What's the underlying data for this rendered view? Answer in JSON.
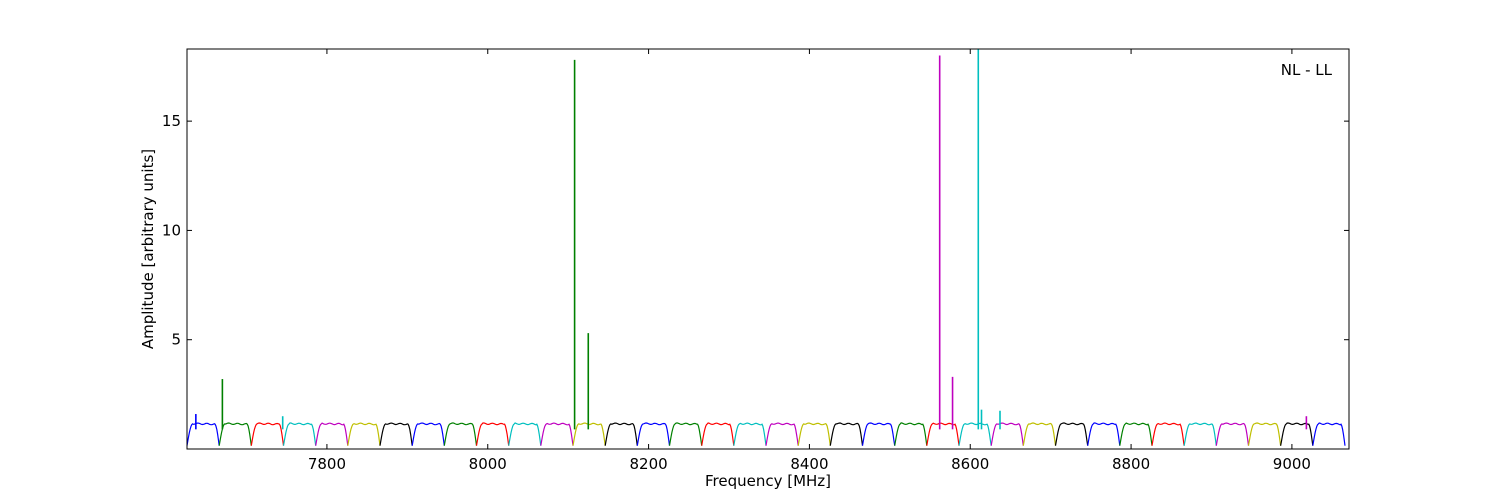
{
  "chart_data": {
    "type": "line",
    "title": "",
    "annotation": "NL - LL",
    "xlabel": "Frequency [MHz]",
    "ylabel": "Amplitude [arbitrary units]",
    "xlim": [
      7626,
      9071
    ],
    "ylim": [
      0,
      18.3
    ],
    "xticks": [
      7800,
      8000,
      8200,
      8400,
      8600,
      8800,
      9000
    ],
    "xtick_labels": [
      "7800",
      "8000",
      "8200",
      "8400",
      "8600",
      "8800",
      "9000"
    ],
    "yticks": [
      5,
      10,
      15
    ],
    "ytick_labels": [
      "5",
      "10",
      "15"
    ],
    "grid": false,
    "legend": "none",
    "band_start_mhz": 7626,
    "band_width_mhz": 40,
    "band_count": 36,
    "band_profile": {
      "shape": "bandpass",
      "edge_level": 0.15,
      "plateau_level": 1.15
    },
    "color_cycle": [
      "#0000ff",
      "#008000",
      "#ff0000",
      "#00bfbf",
      "#bf00bf",
      "#bfbf00",
      "#000000"
    ],
    "spikes": [
      {
        "x": 7637,
        "y": 1.6,
        "color": "#0000ff"
      },
      {
        "x": 7670,
        "y": 3.2,
        "color": "#008000"
      },
      {
        "x": 7745,
        "y": 1.5,
        "color": "#00bfbf"
      },
      {
        "x": 8108,
        "y": 17.8,
        "color": "#008000"
      },
      {
        "x": 8125,
        "y": 5.3,
        "color": "#008000"
      },
      {
        "x": 8562,
        "y": 18.0,
        "color": "#bf00bf"
      },
      {
        "x": 8578,
        "y": 3.3,
        "color": "#bf00bf"
      },
      {
        "x": 8610,
        "y": 18.3,
        "color": "#00bfbf"
      },
      {
        "x": 8614,
        "y": 1.8,
        "color": "#00bfbf"
      },
      {
        "x": 8637,
        "y": 1.75,
        "color": "#00bfbf"
      },
      {
        "x": 9018,
        "y": 1.5,
        "color": "#bf00bf"
      }
    ]
  }
}
